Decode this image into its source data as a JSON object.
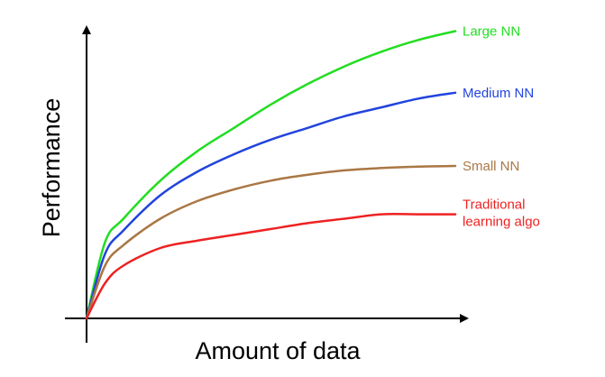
{
  "chart_data": {
    "type": "line",
    "title": "",
    "xlabel": "Amount of data",
    "ylabel": "Performance",
    "xlim": [
      0,
      100
    ],
    "ylim": [
      0,
      100
    ],
    "grid": false,
    "legend": "inline labels at line ends",
    "x": [
      0,
      5,
      10,
      20,
      30,
      40,
      50,
      60,
      70,
      80,
      90,
      100
    ],
    "series": [
      {
        "name": "Large NN",
        "color": "#22dd22",
        "values": [
          0,
          26,
          34,
          47,
          57,
          65,
          73,
          80,
          86,
          91,
          95,
          98
        ]
      },
      {
        "name": "Medium NN",
        "color": "#2244dd",
        "values": [
          0,
          22,
          30,
          42,
          50,
          56,
          61,
          65,
          69,
          72,
          75,
          77
        ]
      },
      {
        "name": "Small NN",
        "color": "#aa7744",
        "values": [
          0,
          18,
          25,
          34,
          40,
          44,
          47,
          49,
          50.5,
          51.3,
          51.8,
          52
        ]
      },
      {
        "name": "Traditional learning algo",
        "color": "#ee2222",
        "values": [
          0,
          12,
          18,
          24,
          26.5,
          28.5,
          30.5,
          32.5,
          34,
          35.5,
          35.5,
          35.5
        ]
      }
    ]
  }
}
